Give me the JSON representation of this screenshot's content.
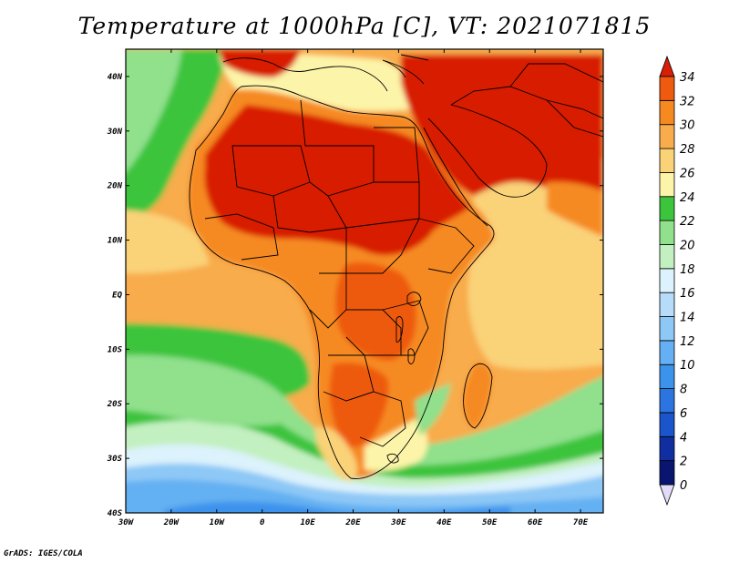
{
  "title": "Temperature at 1000hPa [C], VT: 2021071815",
  "credit": "GrADS: IGES/COLA",
  "map": {
    "lon_range": [
      -30,
      75
    ],
    "lat_range": [
      -40,
      45
    ],
    "lon_ticks": [
      {
        "value": -30,
        "label": "30W"
      },
      {
        "value": -20,
        "label": "20W"
      },
      {
        "value": -10,
        "label": "10W"
      },
      {
        "value": 0,
        "label": "0"
      },
      {
        "value": 10,
        "label": "10E"
      },
      {
        "value": 20,
        "label": "20E"
      },
      {
        "value": 30,
        "label": "30E"
      },
      {
        "value": 40,
        "label": "40E"
      },
      {
        "value": 50,
        "label": "50E"
      },
      {
        "value": 60,
        "label": "60E"
      },
      {
        "value": 70,
        "label": "70E"
      }
    ],
    "lat_ticks": [
      {
        "value": 40,
        "label": "40N"
      },
      {
        "value": 30,
        "label": "30N"
      },
      {
        "value": 20,
        "label": "20N"
      },
      {
        "value": 10,
        "label": "10N"
      },
      {
        "value": 0,
        "label": "EQ"
      },
      {
        "value": -10,
        "label": "10S"
      },
      {
        "value": -20,
        "label": "20S"
      },
      {
        "value": -30,
        "label": "30S"
      },
      {
        "value": -40,
        "label": "40S"
      }
    ]
  },
  "colorbar": {
    "levels": [
      {
        "label": "0",
        "color": "#0a1570"
      },
      {
        "label": "2",
        "color": "#102ea0"
      },
      {
        "label": "4",
        "color": "#1a55cc"
      },
      {
        "label": "6",
        "color": "#2c74e0"
      },
      {
        "label": "8",
        "color": "#3c93ec"
      },
      {
        "label": "10",
        "color": "#64b0f2"
      },
      {
        "label": "12",
        "color": "#8ec8f6"
      },
      {
        "label": "14",
        "color": "#b6dcfa"
      },
      {
        "label": "16",
        "color": "#dcf2fc"
      },
      {
        "label": "18",
        "color": "#c2f0c0"
      },
      {
        "label": "20",
        "color": "#90e08c"
      },
      {
        "label": "22",
        "color": "#3cc43c"
      },
      {
        "label": "24",
        "color": "#fcf4a8"
      },
      {
        "label": "26",
        "color": "#fad278"
      },
      {
        "label": "28",
        "color": "#f8ac4c"
      },
      {
        "label": "30",
        "color": "#f68a20"
      },
      {
        "label": "32",
        "color": "#ee5a10"
      },
      {
        "label": "34",
        "color": "#d81e06"
      }
    ],
    "min_color": "#e2dcf8",
    "max_color": "#d81e06"
  }
}
